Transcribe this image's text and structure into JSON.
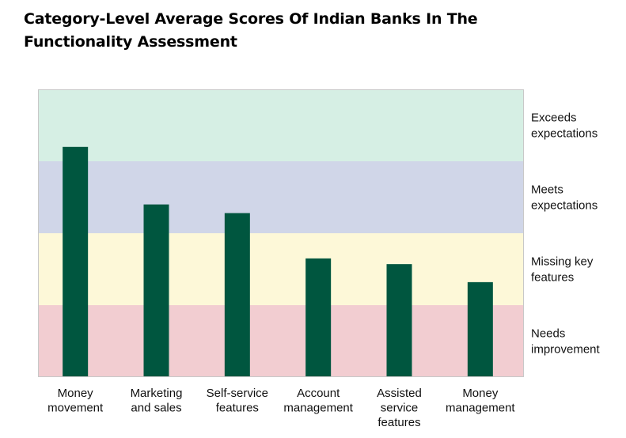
{
  "chart_data": {
    "type": "bar",
    "title": "Category-Level Average Scores Of Indian Banks In The Functionality Assessment",
    "categories": [
      [
        "Money",
        "movement"
      ],
      [
        "Marketing",
        "and sales"
      ],
      [
        "Self-service",
        "features"
      ],
      [
        "Account",
        "management"
      ],
      [
        "Assisted",
        "service",
        "features"
      ],
      [
        "Money",
        "management"
      ]
    ],
    "values": [
      3.2,
      2.4,
      2.28,
      1.65,
      1.57,
      1.32
    ],
    "ylim": [
      0,
      4
    ],
    "grid": false,
    "bar_color": "#00563f",
    "bands": [
      {
        "label": [
          "Needs",
          "improvement"
        ],
        "from": 0,
        "to": 1,
        "color": "#f2cdd1"
      },
      {
        "label": [
          "Missing key",
          "features"
        ],
        "from": 1,
        "to": 2,
        "color": "#fdf8d8"
      },
      {
        "label": [
          "Meets",
          "expectations"
        ],
        "from": 2,
        "to": 3,
        "color": "#d0d6e8"
      },
      {
        "label": [
          "Exceeds",
          "expectations"
        ],
        "from": 3,
        "to": 4,
        "color": "#d6efe4"
      }
    ]
  }
}
